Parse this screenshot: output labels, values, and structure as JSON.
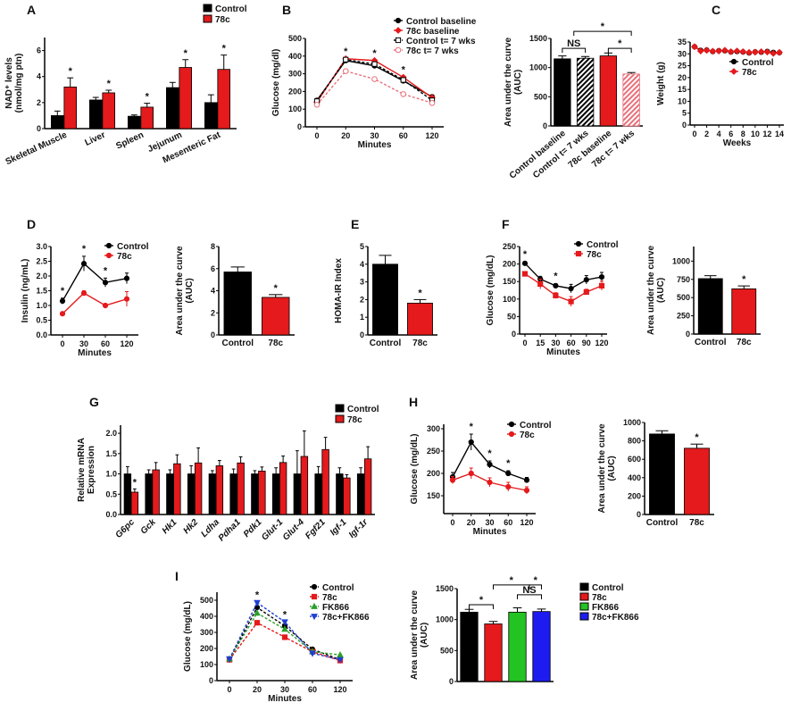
{
  "star": "*",
  "chart_data": [
    {
      "id": "A",
      "panel": "A",
      "type": "bar",
      "categories": [
        "Skeletal Muscle",
        "Liver",
        "Spleen",
        "Jejunum",
        "Mesenteric Fat"
      ],
      "series": [
        {
          "name": "Control",
          "color": "#000000",
          "values": [
            1.0,
            2.2,
            0.95,
            3.15,
            2.0
          ],
          "errors": [
            0.35,
            0.2,
            0.1,
            0.4,
            0.6
          ]
        },
        {
          "name": "78c",
          "color": "#e41a1c",
          "values": [
            3.2,
            2.75,
            1.65,
            4.7,
            4.55
          ],
          "errors": [
            0.7,
            0.2,
            0.3,
            0.6,
            1.1
          ]
        }
      ],
      "stars": [
        [
          0,
          1
        ],
        [
          1,
          1
        ],
        [
          2,
          1
        ],
        [
          3,
          1
        ],
        [
          4,
          1
        ]
      ],
      "ylabel": [
        "NAD⁺ levels",
        "(nmol/mg ptn)"
      ],
      "ylim": [
        0,
        7
      ],
      "yticks": [
        "0",
        "2",
        "4",
        "6"
      ],
      "legend": "top-right"
    },
    {
      "id": "B1",
      "panel": "B",
      "type": "line",
      "x": [
        "0",
        "20",
        "30",
        "60",
        "120"
      ],
      "xlabel": "Minutes",
      "series": [
        {
          "name": "Control baseline",
          "color": "#000000",
          "marker": "circle",
          "dashed": false,
          "values": [
            150,
            375,
            345,
            260,
            170
          ]
        },
        {
          "name": "78c baseline",
          "color": "#e41a1c",
          "marker": "diamond",
          "dashed": false,
          "values": [
            140,
            385,
            375,
            280,
            165
          ]
        },
        {
          "name": "Control t= 7 wks",
          "color": "#000000",
          "marker": "open-square",
          "dashed": true,
          "values": [
            145,
            380,
            355,
            265,
            150
          ]
        },
        {
          "name": "78c t= 7 wks",
          "color": "#e8707a",
          "marker": "open-circle",
          "dashed": true,
          "values": [
            125,
            315,
            270,
            185,
            135
          ]
        }
      ],
      "stars": [
        1,
        2,
        3
      ],
      "ylabel": [
        "Glucose (mg/dl)"
      ],
      "ylim": [
        0,
        500
      ],
      "yticks": [
        "0",
        "100",
        "200",
        "300",
        "400",
        "500"
      ],
      "legend": "top-right"
    },
    {
      "id": "B2",
      "type": "bar",
      "categories": [
        "Control baseline",
        "Control t= 7 wks",
        "78c baseline",
        "78c t= 7 wks"
      ],
      "values": [
        1150,
        1160,
        1200,
        890
      ],
      "errors": [
        50,
        30,
        50,
        25
      ],
      "colors": [
        "#000000",
        "#000000",
        "#e41a1c",
        "#e8707a"
      ],
      "hatched": [
        false,
        true,
        false,
        true
      ],
      "brackets": [
        {
          "from": 0,
          "to": 1,
          "label": "NS"
        },
        {
          "from": 0.5,
          "to": 3,
          "label": "*"
        },
        {
          "from": 2,
          "to": 3,
          "label": "*"
        }
      ],
      "ylabel": [
        "Area under the curve",
        "(AUC)"
      ],
      "ylim": [
        0,
        1500
      ],
      "yticks": [
        "0",
        "500",
        "1000",
        "1500"
      ]
    },
    {
      "id": "C",
      "panel": "C",
      "type": "line",
      "x": [
        0,
        1,
        2,
        3,
        4,
        5,
        6,
        7,
        8,
        9,
        10,
        11,
        12,
        13,
        14
      ],
      "xticks": [
        "0",
        "2",
        "4",
        "6",
        "8",
        "10",
        "12",
        "14"
      ],
      "xlabel": "Weeks",
      "series": [
        {
          "name": "Control",
          "color": "#000000",
          "marker": "circle",
          "dashed": false,
          "values": [
            33,
            31.5,
            31.6,
            31,
            31.3,
            31.3,
            30.8,
            31,
            30.8,
            30.4,
            30.8,
            30.7,
            31,
            30.6,
            30.5
          ]
        },
        {
          "name": "78c",
          "color": "#e41a1c",
          "marker": "diamond",
          "dashed": false,
          "values": [
            33,
            31.2,
            31.5,
            31.1,
            31.2,
            31.5,
            30.9,
            31.2,
            30.9,
            30.6,
            30.7,
            30.9,
            30.8,
            30.2,
            30.6
          ]
        }
      ],
      "ylabel": [
        "Weight (g)"
      ],
      "ylim": [
        0,
        35
      ],
      "yticks": [
        "0",
        "5",
        "10",
        "15",
        "20",
        "25",
        "30",
        "35"
      ],
      "legend": "right"
    },
    {
      "id": "D1",
      "panel": "D",
      "type": "line",
      "x": [
        "0",
        "30",
        "60",
        "120"
      ],
      "xlabel": "Minutes",
      "series": [
        {
          "name": "Control",
          "color": "#000000",
          "marker": "circle",
          "dashed": false,
          "values": [
            1.15,
            2.42,
            1.78,
            1.92
          ],
          "errors": [
            0.1,
            0.25,
            0.15,
            0.18
          ]
        },
        {
          "name": "78c",
          "color": "#e41a1c",
          "marker": "circle",
          "dashed": false,
          "values": [
            0.72,
            1.42,
            1.0,
            1.22
          ],
          "errors": [
            0.05,
            0.08,
            0.05,
            0.25
          ]
        }
      ],
      "stars": [
        0,
        1,
        2
      ],
      "ylabel": [
        "Insulin (ng/mL)"
      ],
      "ylim": [
        0,
        3
      ],
      "yticks": [
        "0.0",
        "0.5",
        "1.0",
        "1.5",
        "2.0",
        "2.5",
        "3.0"
      ],
      "legend": "top-right"
    },
    {
      "id": "D2",
      "type": "bar",
      "categories": [
        "Control",
        "78c"
      ],
      "values": [
        5.7,
        3.4
      ],
      "errors": [
        0.45,
        0.25
      ],
      "colors": [
        "#000000",
        "#e41a1c"
      ],
      "stars": [
        1
      ],
      "ylabel": [
        "Area under the curve",
        "(AUC)"
      ],
      "ylim": [
        0,
        8
      ],
      "yticks": [
        "0",
        "2",
        "4",
        "6",
        "8"
      ]
    },
    {
      "id": "E",
      "panel": "E",
      "type": "bar",
      "categories": [
        "Control",
        "78c"
      ],
      "values": [
        4.0,
        1.8
      ],
      "errors": [
        0.5,
        0.2
      ],
      "colors": [
        "#000000",
        "#e41a1c"
      ],
      "stars": [
        1
      ],
      "ylabel": [
        "HOMA-IR Index"
      ],
      "ylim": [
        0,
        5
      ],
      "yticks": [
        "0",
        "1",
        "2",
        "3",
        "4",
        "5"
      ]
    },
    {
      "id": "F1",
      "panel": "F",
      "type": "line",
      "x": [
        "0",
        "15",
        "30",
        "60",
        "90",
        "120"
      ],
      "xlabel": "Minutes",
      "series": [
        {
          "name": "Control",
          "color": "#000000",
          "marker": "circle",
          "dashed": false,
          "values": [
            202,
            157,
            138,
            130,
            155,
            163
          ],
          "errors": [
            5,
            8,
            6,
            12,
            12,
            13
          ]
        },
        {
          "name": "78c",
          "color": "#e41a1c",
          "marker": "square",
          "dashed": false,
          "values": [
            172,
            143,
            110,
            93,
            120,
            138
          ],
          "errors": [
            6,
            14,
            8,
            14,
            8,
            13
          ]
        }
      ],
      "stars": [
        0,
        2
      ],
      "ylabel": [
        "Glucose (mg/dL)"
      ],
      "ylim": [
        0,
        250
      ],
      "yticks": [
        "0",
        "50",
        "100",
        "150",
        "200",
        "250"
      ],
      "legend": "top-right"
    },
    {
      "id": "F2",
      "type": "bar",
      "categories": [
        "Control",
        "78c"
      ],
      "values": [
        760,
        620
      ],
      "errors": [
        40,
        40
      ],
      "colors": [
        "#000000",
        "#e41a1c"
      ],
      "stars": [
        1
      ],
      "ylabel": [
        "Area under the curve",
        "(AUC)"
      ],
      "ylim": [
        0,
        1200
      ],
      "yticks": [
        "0",
        "250",
        "500",
        "750",
        "1000"
      ]
    },
    {
      "id": "G",
      "panel": "G",
      "type": "bar",
      "categories": [
        "G6pc",
        "Gck",
        "Hk1",
        "Hk2",
        "Ldha",
        "Pdha1",
        "Pdk1",
        "Glut-1",
        "Glut-4",
        "Fgf21",
        "Igf-1",
        "Igf-1r"
      ],
      "series": [
        {
          "name": "Control",
          "color": "#000000",
          "values": [
            1,
            1,
            1,
            1,
            1,
            1,
            1,
            1,
            1,
            1,
            1,
            1
          ],
          "errors": [
            0.18,
            0.1,
            0.1,
            0.2,
            0.08,
            0.12,
            0.08,
            0.15,
            0.57,
            0.18,
            0.15,
            0.15
          ]
        },
        {
          "name": "78c",
          "color": "#e41a1c",
          "values": [
            0.55,
            1.1,
            1.25,
            1.27,
            1.2,
            1.27,
            1.07,
            1.28,
            1.43,
            1.6,
            0.9,
            1.37
          ],
          "errors": [
            0.08,
            0.18,
            0.22,
            0.37,
            0.13,
            0.15,
            0.1,
            0.16,
            0.63,
            0.3,
            0.08,
            0.3
          ]
        }
      ],
      "stars": [
        [
          0,
          1
        ]
      ],
      "ylabel": [
        "Relative mRNA",
        "Expression"
      ],
      "ylim": [
        0,
        2.2
      ],
      "yticks": [
        "0.0",
        "0.5",
        "1.0",
        "1.5",
        "2.0"
      ],
      "legend": "top-right"
    },
    {
      "id": "H1",
      "panel": "H",
      "type": "line",
      "x": [
        "0",
        "20",
        "30",
        "60",
        "120"
      ],
      "xlabel": "Minutes",
      "series": [
        {
          "name": "Control",
          "color": "#000000",
          "marker": "circle",
          "dashed": false,
          "values": [
            192,
            270,
            220,
            200,
            185
          ],
          "errors": [
            10,
            18,
            8,
            6,
            6
          ]
        },
        {
          "name": "78c",
          "color": "#e41a1c",
          "marker": "circle",
          "dashed": false,
          "values": [
            185,
            200,
            180,
            170,
            162
          ],
          "errors": [
            8,
            12,
            10,
            10,
            8
          ]
        }
      ],
      "stars": [
        1,
        2,
        3
      ],
      "ylabel": [
        "Glucose (mg/dL)"
      ],
      "ylim": [
        110,
        310
      ],
      "yticks": [
        "150",
        "200",
        "250",
        "300"
      ],
      "legend": "top-right"
    },
    {
      "id": "H2",
      "type": "bar",
      "categories": [
        "Control",
        "78c"
      ],
      "values": [
        875,
        720
      ],
      "errors": [
        35,
        45
      ],
      "colors": [
        "#000000",
        "#e41a1c"
      ],
      "stars": [
        1
      ],
      "ylabel": [
        "Area under the curve",
        "(AUC)"
      ],
      "ylim": [
        0,
        1000
      ],
      "yticks": [
        "0",
        "200",
        "400",
        "600",
        "800",
        "1000"
      ]
    },
    {
      "id": "I1",
      "panel": "I",
      "type": "line",
      "x": [
        "0",
        "20",
        "30",
        "60",
        "120"
      ],
      "xlabel": "Minutes",
      "series": [
        {
          "name": "Control",
          "color": "#000000",
          "marker": "circle",
          "dashed": true,
          "values": [
            130,
            455,
            340,
            195,
            130
          ]
        },
        {
          "name": "78c",
          "color": "#e41a1c",
          "marker": "square",
          "dashed": true,
          "values": [
            130,
            360,
            270,
            180,
            125
          ]
        },
        {
          "name": "FK866",
          "color": "#2ca02c",
          "marker": "triangle",
          "dashed": true,
          "values": [
            135,
            420,
            320,
            180,
            160
          ]
        },
        {
          "name": "78c+FK866",
          "color": "#1f3fd0",
          "marker": "triangle-down",
          "dashed": true,
          "values": [
            135,
            485,
            365,
            170,
            130
          ]
        }
      ],
      "stars": [
        1,
        2
      ],
      "ylabel": [
        "Glucose (mg/dL)"
      ],
      "ylim": [
        0,
        550
      ],
      "yticks": [
        "0",
        "100",
        "200",
        "300",
        "400",
        "500"
      ],
      "legend": "top-right"
    },
    {
      "id": "I2",
      "type": "bar",
      "categories": [
        "Control",
        "78c",
        "FK866",
        "78c+FK866"
      ],
      "values": [
        1120,
        930,
        1120,
        1130
      ],
      "errors": [
        45,
        40,
        70,
        40
      ],
      "colors": [
        "#000000",
        "#e41a1c",
        "#22c322",
        "#1c1cf0"
      ],
      "showLegend": true,
      "brackets": [
        {
          "from": 0,
          "to": 1,
          "label": "*"
        },
        {
          "from": 2,
          "to": 3,
          "label": "NS"
        },
        {
          "from": 1,
          "to": 2.5,
          "label": "*"
        },
        {
          "from": 2.5,
          "to": 3,
          "label": "*"
        }
      ],
      "ylabel": [
        "Area under the curve",
        "(AUC)"
      ],
      "ylim": [
        0,
        1500
      ],
      "yticks": [
        "0",
        "500",
        "1000",
        "1500"
      ],
      "legend": "right"
    }
  ]
}
